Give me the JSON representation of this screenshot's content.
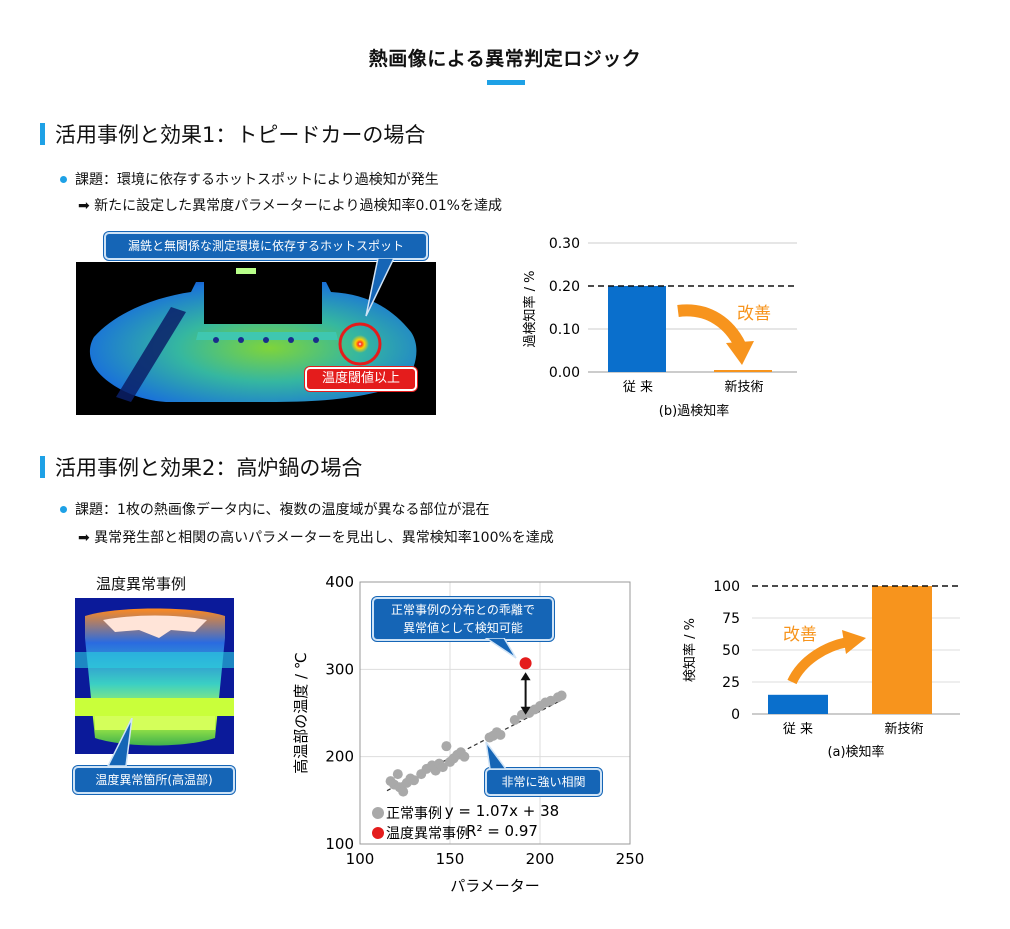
{
  "page_title": "熱画像による異常判定ロジック",
  "section1": {
    "heading": "活用事例と効果1：トピードカーの場合",
    "issue": "課題：環境に依存するホットスポットにより過検知が発生",
    "result": "➡ 新たに設定した異常度パラメーターにより過検知率0.01%を達成",
    "callout": "漏銑と無関係な測定環境に依存するホットスポット",
    "red_label": "温度閾値以上"
  },
  "section2": {
    "heading": "活用事例と効果2：高炉鍋の場合",
    "issue": "課題：1枚の熱画像データ内に、複数の温度域が異なる部位が混在",
    "result": "➡ 異常発生部と相関の高いパラメーターを見出し、異常検知率100%を達成",
    "image_title": "温度異常事例",
    "callout_hot": "温度異常箇所(高温部)",
    "callout_scatter": "正常事例の分布との乖離で\n異常値として検知可能",
    "callout_corr": "非常に強い相関"
  },
  "chart_data": [
    {
      "type": "bar",
      "title": "(b)過検知率",
      "categories": [
        "従 来",
        "新技術"
      ],
      "values": [
        0.2,
        0.0001
      ],
      "colors": [
        "#0a6fcc",
        "#f7941d"
      ],
      "ylabel": "過検知率 / %",
      "ylim": [
        0,
        0.3
      ],
      "yticks": [
        "0.00",
        "0.10",
        "0.20",
        "0.30"
      ],
      "reference_line": 0.2,
      "annotation": "改善"
    },
    {
      "type": "scatter",
      "xlabel": "パラメーター",
      "ylabel": "高温部の温度 / ℃",
      "xlim": [
        100,
        250
      ],
      "ylim": [
        100,
        400
      ],
      "xticks": [
        100,
        150,
        200,
        250
      ],
      "yticks": [
        100,
        200,
        300,
        400
      ],
      "series": [
        {
          "name": "正常事例",
          "color": "#a9a9a9",
          "points": [
            [
              117,
              172
            ],
            [
              119,
              168
            ],
            [
              121,
              180
            ],
            [
              122,
              165
            ],
            [
              124,
              160
            ],
            [
              126,
              170
            ],
            [
              128,
              175
            ],
            [
              130,
              173
            ],
            [
              134,
              180
            ],
            [
              137,
              186
            ],
            [
              140,
              190
            ],
            [
              142,
              184
            ],
            [
              144,
              192
            ],
            [
              146,
              188
            ],
            [
              148,
              212
            ],
            [
              150,
              194
            ],
            [
              152,
              198
            ],
            [
              154,
              202
            ],
            [
              156,
              205
            ],
            [
              158,
              200
            ],
            [
              172,
              222
            ],
            [
              174,
              224
            ],
            [
              176,
              228
            ],
            [
              178,
              225
            ],
            [
              186,
              242
            ],
            [
              190,
              248
            ],
            [
              194,
              250
            ],
            [
              197,
              254
            ],
            [
              200,
              258
            ],
            [
              203,
              262
            ],
            [
              206,
              264
            ],
            [
              210,
              268
            ],
            [
              212,
              270
            ]
          ]
        },
        {
          "name": "温度異常事例",
          "color": "#e41c1c",
          "points": [
            [
              192,
              307
            ]
          ]
        }
      ],
      "fit": {
        "slope": 1.07,
        "intercept": 38,
        "x_range": [
          115,
          215
        ]
      },
      "equation": "y = 1.07x + 38",
      "r2": "R² = 0.97",
      "grid": true
    },
    {
      "type": "bar",
      "title": "(a)検知率",
      "categories": [
        "従 来",
        "新技術"
      ],
      "values": [
        15,
        100
      ],
      "colors": [
        "#0a6fcc",
        "#f7941d"
      ],
      "ylabel": "検知率 / %",
      "ylim": [
        0,
        100
      ],
      "yticks": [
        "0",
        "25",
        "50",
        "75",
        "100"
      ],
      "reference_line": 100,
      "annotation": "改善"
    }
  ]
}
